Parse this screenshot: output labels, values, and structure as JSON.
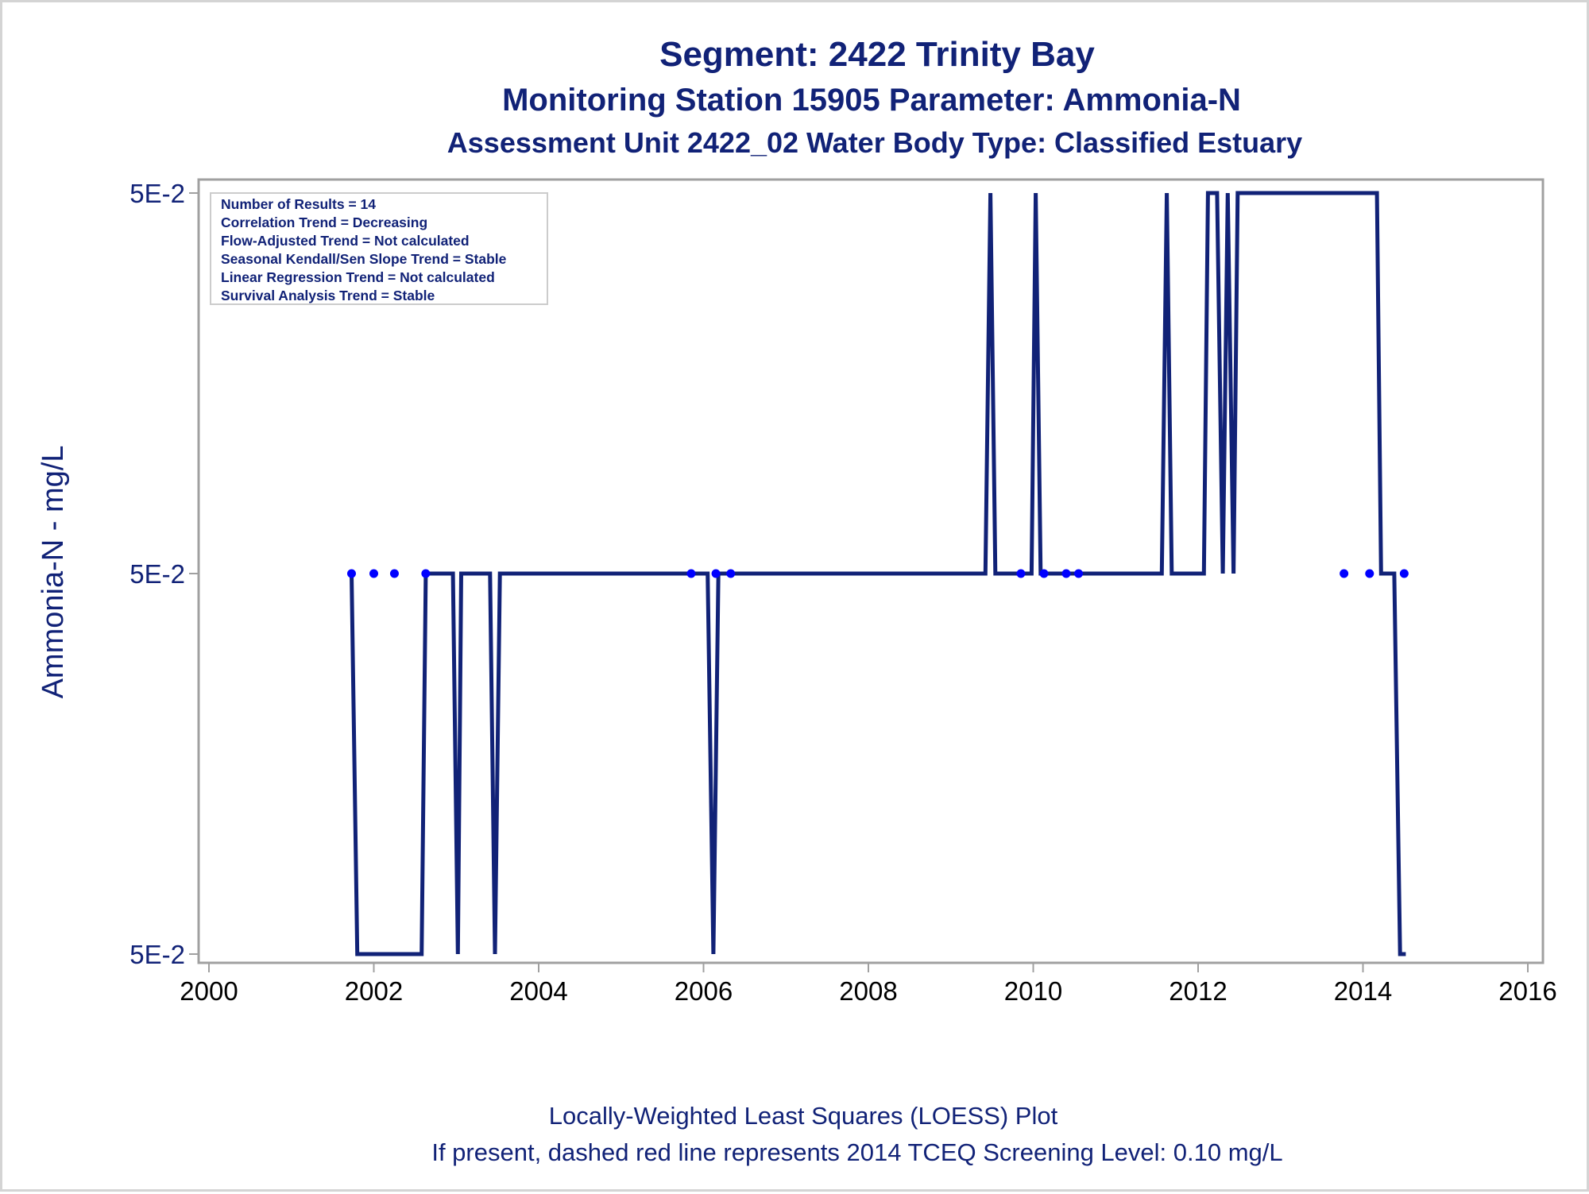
{
  "title": {
    "line1": "Segment: 2422  Trinity Bay",
    "line2": "Monitoring Station 15905 Parameter: Ammonia-N",
    "line3": "Assessment Unit 2422_02   Water Body Type: Classified Estuary"
  },
  "stats_box": [
    "Number of Results = 14",
    "Correlation Trend = Decreasing",
    "Flow-Adjusted Trend = Not calculated",
    "Seasonal Kendall/Sen Slope Trend = Stable",
    "Linear Regression Trend = Not calculated",
    "Survival Analysis Trend = Stable"
  ],
  "footer": {
    "line1": "Locally-Weighted Least Squares (LOESS) Plot",
    "line2": "If present, dashed red line represents 2014 TCEQ Screening Level: 0.10 mg/L"
  },
  "colors": {
    "line": "#112277",
    "points": "#0000ff",
    "frame": "#a0a0a0",
    "text": "#112277"
  },
  "chart_data": {
    "type": "line",
    "title": "Segment: 2422  Trinity Bay",
    "ylabel": "Ammonia-N - mg/L",
    "xlabel": "",
    "xlim": [
      2000,
      2016
    ],
    "x_ticks": [
      "2000",
      "2002",
      "2004",
      "2006",
      "2008",
      "2010",
      "2012",
      "2014",
      "2016"
    ],
    "y_levels": [
      -1,
      0,
      1
    ],
    "y_tick_labels": [
      "5E-2",
      "5E-2",
      "5E-2"
    ],
    "series": [
      {
        "style": "loess-line",
        "points": [
          [
            2001.73,
            0
          ],
          [
            2001.8,
            -1
          ],
          [
            2002.58,
            -1
          ],
          [
            2002.63,
            0
          ],
          [
            2002.96,
            0
          ],
          [
            2003.02,
            -1
          ],
          [
            2003.06,
            0
          ],
          [
            2003.41,
            0
          ],
          [
            2003.47,
            -1
          ],
          [
            2003.53,
            0
          ],
          [
            2006.05,
            0
          ],
          [
            2006.12,
            -1
          ],
          [
            2006.18,
            0
          ],
          [
            2009.42,
            0
          ],
          [
            2009.48,
            1
          ],
          [
            2009.54,
            0
          ],
          [
            2009.98,
            0
          ],
          [
            2010.03,
            1
          ],
          [
            2010.09,
            0
          ],
          [
            2011.56,
            0
          ],
          [
            2011.62,
            1
          ],
          [
            2011.68,
            0
          ],
          [
            2012.07,
            0
          ],
          [
            2012.12,
            1
          ],
          [
            2012.23,
            1
          ],
          [
            2012.3,
            0
          ],
          [
            2012.36,
            1
          ],
          [
            2012.43,
            0
          ],
          [
            2012.48,
            1
          ],
          [
            2014.17,
            1
          ],
          [
            2014.22,
            0
          ],
          [
            2014.38,
            0
          ],
          [
            2014.45,
            -1
          ],
          [
            2014.52,
            -1
          ]
        ]
      },
      {
        "style": "observations",
        "points": [
          [
            2001.73,
            0
          ],
          [
            2002.0,
            0
          ],
          [
            2002.25,
            0
          ],
          [
            2002.63,
            0
          ],
          [
            2005.85,
            0
          ],
          [
            2006.15,
            0
          ],
          [
            2006.33,
            0
          ],
          [
            2009.85,
            0
          ],
          [
            2010.13,
            0
          ],
          [
            2010.4,
            0
          ],
          [
            2010.55,
            0
          ],
          [
            2013.77,
            0
          ],
          [
            2014.08,
            0
          ],
          [
            2014.5,
            0
          ]
        ]
      }
    ]
  }
}
